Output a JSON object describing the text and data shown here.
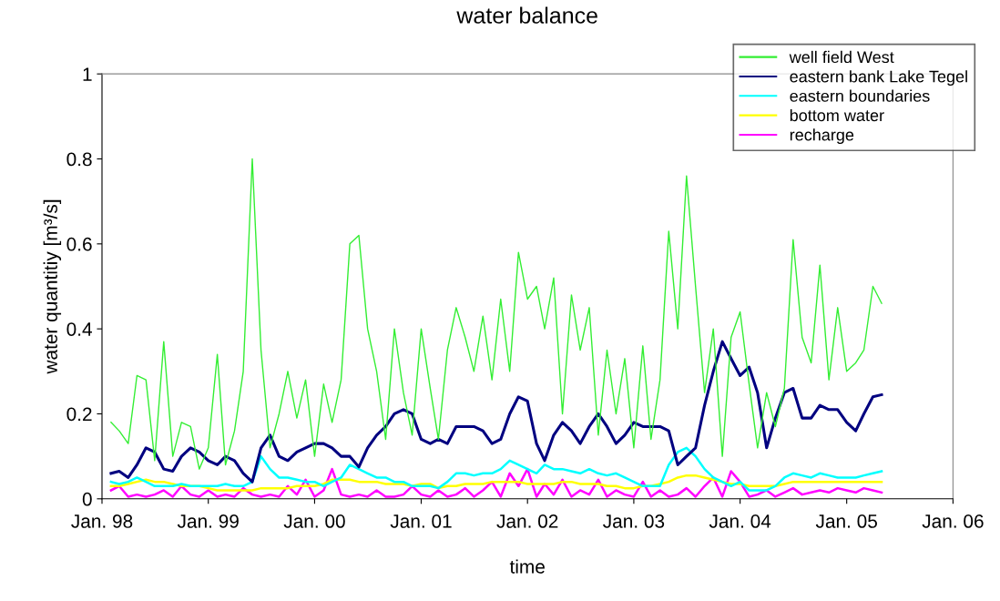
{
  "chart_data": {
    "type": "line",
    "title": "water balance",
    "xlabel": "time",
    "ylabel": "water quantitiy [m³/s]",
    "x": [
      "1998-02",
      "1998-03",
      "1998-04",
      "1998-05",
      "1998-06",
      "1998-07",
      "1998-08",
      "1998-09",
      "1998-10",
      "1998-11",
      "1998-12",
      "1999-01",
      "1999-02",
      "1999-03",
      "1999-04",
      "1999-05",
      "1999-06",
      "1999-07",
      "1999-08",
      "1999-09",
      "1999-10",
      "1999-11",
      "1999-12",
      "2000-01",
      "2000-02",
      "2000-03",
      "2000-04",
      "2000-05",
      "2000-06",
      "2000-07",
      "2000-08",
      "2000-09",
      "2000-10",
      "2000-11",
      "2000-12",
      "2001-01",
      "2001-02",
      "2001-03",
      "2001-04",
      "2001-05",
      "2001-06",
      "2001-07",
      "2001-08",
      "2001-09",
      "2001-10",
      "2001-11",
      "2001-12",
      "2002-01",
      "2002-02",
      "2002-03",
      "2002-04",
      "2002-05",
      "2002-06",
      "2002-07",
      "2002-08",
      "2002-09",
      "2002-10",
      "2002-11",
      "2002-12",
      "2003-01",
      "2003-02",
      "2003-03",
      "2003-04",
      "2003-05",
      "2003-06",
      "2003-07",
      "2003-08",
      "2003-09",
      "2003-10",
      "2003-11",
      "2003-12",
      "2004-01",
      "2004-02",
      "2004-03",
      "2004-04",
      "2004-05",
      "2004-06",
      "2004-07",
      "2004-08",
      "2004-09",
      "2004-10",
      "2004-11",
      "2004-12",
      "2005-01",
      "2005-02",
      "2005-03",
      "2005-04",
      "2005-05"
    ],
    "series": [
      {
        "name": "well field West",
        "color": "#33ee33",
        "values": [
          0.18,
          0.16,
          0.13,
          0.29,
          0.28,
          0.09,
          0.37,
          0.1,
          0.18,
          0.17,
          0.07,
          0.12,
          0.34,
          0.08,
          0.16,
          0.3,
          0.8,
          0.35,
          0.12,
          0.2,
          0.3,
          0.19,
          0.28,
          0.1,
          0.27,
          0.18,
          0.28,
          0.6,
          0.62,
          0.4,
          0.3,
          0.14,
          0.4,
          0.25,
          0.15,
          0.4,
          0.26,
          0.14,
          0.35,
          0.45,
          0.38,
          0.3,
          0.43,
          0.28,
          0.47,
          0.3,
          0.58,
          0.47,
          0.5,
          0.4,
          0.52,
          0.2,
          0.48,
          0.35,
          0.45,
          0.15,
          0.35,
          0.2,
          0.33,
          0.12,
          0.36,
          0.14,
          0.28,
          0.63,
          0.4,
          0.76,
          0.5,
          0.25,
          0.4,
          0.1,
          0.38,
          0.44,
          0.27,
          0.12,
          0.25,
          0.17,
          0.26,
          0.61,
          0.38,
          0.32,
          0.55,
          0.28,
          0.45,
          0.3,
          0.32,
          0.35,
          0.5,
          0.46
        ]
      },
      {
        "name": "eastern bank Lake Tegel",
        "color": "#000080",
        "values": [
          0.06,
          0.065,
          0.05,
          0.08,
          0.12,
          0.11,
          0.07,
          0.065,
          0.1,
          0.12,
          0.11,
          0.09,
          0.08,
          0.1,
          0.09,
          0.06,
          0.04,
          0.12,
          0.15,
          0.1,
          0.09,
          0.11,
          0.12,
          0.13,
          0.13,
          0.12,
          0.1,
          0.1,
          0.075,
          0.12,
          0.15,
          0.17,
          0.2,
          0.21,
          0.2,
          0.14,
          0.13,
          0.14,
          0.13,
          0.17,
          0.17,
          0.17,
          0.16,
          0.13,
          0.14,
          0.2,
          0.24,
          0.23,
          0.13,
          0.09,
          0.15,
          0.18,
          0.16,
          0.13,
          0.17,
          0.2,
          0.17,
          0.13,
          0.15,
          0.18,
          0.17,
          0.17,
          0.17,
          0.16,
          0.08,
          0.1,
          0.12,
          0.22,
          0.3,
          0.37,
          0.33,
          0.29,
          0.31,
          0.25,
          0.12,
          0.19,
          0.25,
          0.26,
          0.19,
          0.19,
          0.22,
          0.21,
          0.21,
          0.18,
          0.16,
          0.2,
          0.24,
          0.245
        ]
      },
      {
        "name": "eastern boundaries",
        "color": "#00ffff",
        "values": [
          0.04,
          0.035,
          0.04,
          0.05,
          0.04,
          0.03,
          0.03,
          0.03,
          0.035,
          0.03,
          0.03,
          0.03,
          0.03,
          0.035,
          0.03,
          0.03,
          0.04,
          0.1,
          0.07,
          0.05,
          0.05,
          0.045,
          0.04,
          0.04,
          0.03,
          0.04,
          0.05,
          0.08,
          0.07,
          0.06,
          0.05,
          0.05,
          0.04,
          0.04,
          0.03,
          0.03,
          0.03,
          0.025,
          0.04,
          0.06,
          0.06,
          0.055,
          0.06,
          0.06,
          0.07,
          0.09,
          0.08,
          0.07,
          0.06,
          0.08,
          0.07,
          0.07,
          0.065,
          0.06,
          0.07,
          0.06,
          0.055,
          0.06,
          0.05,
          0.04,
          0.03,
          0.03,
          0.03,
          0.08,
          0.11,
          0.12,
          0.1,
          0.07,
          0.05,
          0.04,
          0.03,
          0.04,
          0.02,
          0.02,
          0.02,
          0.03,
          0.05,
          0.06,
          0.055,
          0.05,
          0.06,
          0.055,
          0.05,
          0.05,
          0.05,
          0.055,
          0.06,
          0.065
        ]
      },
      {
        "name": "bottom water",
        "color": "#ffff00",
        "values": [
          0.03,
          0.03,
          0.035,
          0.04,
          0.045,
          0.04,
          0.04,
          0.035,
          0.03,
          0.03,
          0.03,
          0.025,
          0.02,
          0.02,
          0.02,
          0.02,
          0.02,
          0.025,
          0.025,
          0.025,
          0.025,
          0.03,
          0.03,
          0.03,
          0.035,
          0.045,
          0.045,
          0.045,
          0.04,
          0.04,
          0.04,
          0.035,
          0.035,
          0.035,
          0.03,
          0.035,
          0.035,
          0.025,
          0.03,
          0.03,
          0.035,
          0.035,
          0.035,
          0.04,
          0.04,
          0.04,
          0.04,
          0.035,
          0.035,
          0.035,
          0.035,
          0.04,
          0.04,
          0.035,
          0.035,
          0.035,
          0.03,
          0.03,
          0.025,
          0.025,
          0.03,
          0.03,
          0.035,
          0.04,
          0.05,
          0.055,
          0.055,
          0.05,
          0.045,
          0.04,
          0.035,
          0.035,
          0.03,
          0.03,
          0.03,
          0.03,
          0.035,
          0.04,
          0.04,
          0.04,
          0.04,
          0.04,
          0.04,
          0.04,
          0.04,
          0.04,
          0.04,
          0.04
        ]
      },
      {
        "name": "recharge",
        "color": "#ff00ff",
        "values": [
          0.02,
          0.03,
          0.005,
          0.01,
          0.005,
          0.01,
          0.02,
          0.005,
          0.03,
          0.01,
          0.005,
          0.02,
          0.005,
          0.01,
          0.005,
          0.025,
          0.01,
          0.005,
          0.01,
          0.005,
          0.03,
          0.01,
          0.045,
          0.005,
          0.02,
          0.07,
          0.01,
          0.005,
          0.01,
          0.005,
          0.02,
          0.005,
          0.005,
          0.01,
          0.03,
          0.01,
          0.005,
          0.02,
          0.005,
          0.01,
          0.025,
          0.005,
          0.02,
          0.04,
          0.005,
          0.06,
          0.03,
          0.07,
          0.005,
          0.035,
          0.01,
          0.045,
          0.005,
          0.02,
          0.01,
          0.045,
          0.005,
          0.02,
          0.01,
          0.005,
          0.04,
          0.005,
          0.02,
          0.005,
          0.01,
          0.025,
          0.005,
          0.03,
          0.05,
          0.005,
          0.065,
          0.04,
          0.005,
          0.01,
          0.02,
          0.005,
          0.015,
          0.025,
          0.01,
          0.015,
          0.02,
          0.015,
          0.025,
          0.02,
          0.015,
          0.025,
          0.02,
          0.015
        ]
      }
    ],
    "xlim": [
      "1998-01",
      "2006-01"
    ],
    "xticks": [
      {
        "value": "1998-01",
        "label": "Jan. 98"
      },
      {
        "value": "1999-01",
        "label": "Jan. 99"
      },
      {
        "value": "2000-01",
        "label": "Jan. 00"
      },
      {
        "value": "2001-01",
        "label": "Jan. 01"
      },
      {
        "value": "2002-01",
        "label": "Jan. 02"
      },
      {
        "value": "2003-01",
        "label": "Jan. 03"
      },
      {
        "value": "2004-01",
        "label": "Jan. 04"
      },
      {
        "value": "2005-01",
        "label": "Jan. 05"
      },
      {
        "value": "2006-01",
        "label": "Jan. 06"
      }
    ],
    "ylim": [
      0,
      1
    ],
    "yticks": [
      0,
      0.2,
      0.4,
      0.6,
      0.8,
      1
    ],
    "grid": false,
    "legend": "top right",
    "marker": "none",
    "line_style": "solid"
  }
}
